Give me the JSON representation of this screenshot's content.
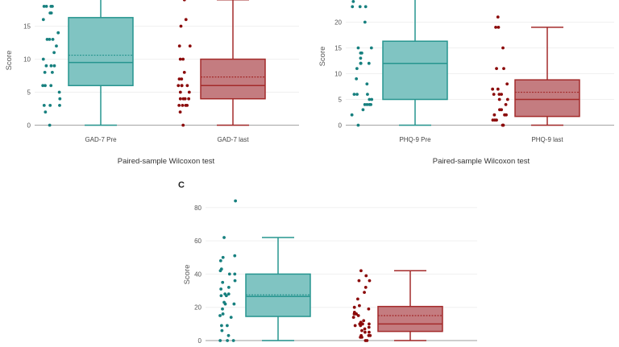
{
  "colors": {
    "pre_point": "#17807f",
    "pre_fill": "#80c4c2",
    "pre_stroke": "#26958f",
    "last_point": "#8b0a0a",
    "last_fill": "#c47c80",
    "last_stroke": "#a32a2a",
    "grid": "#f0f0f0",
    "axis": "#b0b0b0"
  },
  "chart_data": [
    {
      "type": "box",
      "panel_label": "",
      "ylabel": "Score",
      "xlabel": "Paired-sample Wilcoxon test",
      "yticks": [
        0,
        5,
        10,
        15
      ],
      "ylim": [
        0,
        19
      ],
      "grid": true,
      "groups": [
        {
          "category": "GAD-7 Pre",
          "whisker_low": 0,
          "q1": 6,
          "median": 9.5,
          "mean": 10.6,
          "q3": 16.3,
          "whisker_high": 21,
          "points": [
            18,
            18,
            18,
            18,
            17,
            17,
            16,
            14,
            13,
            13,
            13,
            12,
            11,
            10,
            9,
            9,
            9,
            8,
            8,
            6,
            6,
            6,
            5,
            4,
            3,
            3,
            3,
            2,
            0
          ]
        },
        {
          "category": "GAD-7 last",
          "whisker_low": 0,
          "q1": 4,
          "median": 6,
          "mean": 7.3,
          "q3": 10,
          "whisker_high": 19,
          "points": [
            19,
            16,
            15,
            12,
            12,
            10,
            10,
            8,
            7,
            7,
            6,
            6,
            6,
            6,
            5,
            5,
            4,
            4,
            4,
            4,
            3,
            3,
            3,
            3,
            2,
            0
          ]
        }
      ]
    },
    {
      "type": "box",
      "panel_label": "",
      "ylabel": "Score",
      "xlabel": "Paired-sample Wilcoxon test",
      "yticks": [
        0,
        5,
        10,
        15,
        20
      ],
      "ylim": [
        0,
        24.3
      ],
      "grid": true,
      "groups": [
        {
          "category": "PHQ-9 Pre",
          "whisker_low": 0,
          "q1": 5,
          "median": 12,
          "mean": 12,
          "q3": 16.3,
          "whisker_high": 27,
          "points": [
            24,
            23,
            23,
            23,
            20,
            15,
            15,
            14,
            14,
            13,
            12,
            12,
            12,
            11,
            9,
            8,
            6,
            6,
            6,
            5,
            5,
            4,
            4,
            4,
            4,
            3,
            2,
            0
          ]
        },
        {
          "category": "PHQ-9 last",
          "whisker_low": 0,
          "q1": 1.7,
          "median": 5,
          "mean": 6.4,
          "q3": 8.8,
          "whisker_high": 19,
          "points": [
            21,
            19,
            19,
            15,
            11,
            11,
            8,
            7,
            7,
            6,
            6,
            6,
            5,
            5,
            4,
            3,
            3,
            2,
            2,
            2,
            1,
            1,
            1,
            0,
            0,
            0
          ]
        }
      ]
    },
    {
      "type": "box",
      "panel_label": "C",
      "ylabel": "Score",
      "xlabel": "",
      "yticks": [
        0,
        20,
        40,
        60,
        80
      ],
      "ylim": [
        0,
        88
      ],
      "grid": true,
      "groups": [
        {
          "category": "",
          "whisker_low": 0,
          "q1": 14.5,
          "median": 26.5,
          "mean": 27.5,
          "q3": 40,
          "whisker_high": 62,
          "points": [
            84,
            62,
            51,
            50,
            48,
            43,
            42,
            40,
            40,
            36,
            35,
            32,
            31,
            28,
            28,
            27,
            27,
            23,
            22,
            22,
            19,
            16,
            15,
            14,
            9,
            9,
            6,
            3,
            0,
            0,
            0
          ]
        },
        {
          "category": "",
          "whisker_low": 0,
          "q1": 5.5,
          "median": 10,
          "mean": 15,
          "q3": 20.5,
          "whisker_high": 42,
          "points": [
            42,
            39,
            36,
            36,
            32,
            29,
            25,
            21,
            20,
            19,
            17,
            16,
            16,
            15,
            14,
            12,
            11,
            10,
            10,
            10,
            10,
            9,
            9,
            8,
            7,
            6,
            5,
            5,
            3,
            3,
            3,
            2,
            2,
            0,
            0
          ]
        }
      ]
    }
  ]
}
